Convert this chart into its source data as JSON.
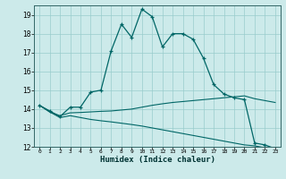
{
  "xlabel": "Humidex (Indice chaleur)",
  "background_color": "#cceaea",
  "grid_color": "#99cccc",
  "line_color": "#006666",
  "xlim": [
    -0.5,
    23.5
  ],
  "ylim": [
    12,
    19.5
  ],
  "yticks": [
    12,
    13,
    14,
    15,
    16,
    17,
    18,
    19
  ],
  "xticks": [
    0,
    1,
    2,
    3,
    4,
    5,
    6,
    7,
    8,
    9,
    10,
    11,
    12,
    13,
    14,
    15,
    16,
    17,
    18,
    19,
    20,
    21,
    22,
    23
  ],
  "line1_x": [
    0,
    1,
    2,
    3,
    4,
    5,
    6,
    7,
    8,
    9,
    10,
    11,
    12,
    13,
    14,
    15,
    16,
    17,
    18,
    19,
    20,
    21,
    22,
    23
  ],
  "line1_y": [
    14.2,
    13.9,
    13.6,
    14.1,
    14.1,
    14.9,
    15.0,
    17.1,
    18.5,
    17.8,
    19.3,
    18.9,
    17.3,
    18.0,
    18.0,
    17.7,
    16.7,
    15.3,
    14.8,
    14.6,
    14.5,
    12.2,
    12.1,
    11.9
  ],
  "line2_x": [
    0,
    1,
    2,
    3,
    4,
    5,
    6,
    7,
    8,
    9,
    10,
    11,
    12,
    13,
    14,
    15,
    16,
    17,
    18,
    19,
    20,
    21,
    22,
    23
  ],
  "line2_y": [
    14.2,
    13.85,
    13.65,
    13.8,
    13.82,
    13.85,
    13.88,
    13.9,
    13.95,
    14.0,
    14.1,
    14.2,
    14.28,
    14.35,
    14.4,
    14.45,
    14.5,
    14.55,
    14.6,
    14.65,
    14.7,
    14.55,
    14.45,
    14.35
  ],
  "line3_x": [
    0,
    1,
    2,
    3,
    4,
    5,
    6,
    7,
    8,
    9,
    10,
    11,
    12,
    13,
    14,
    15,
    16,
    17,
    18,
    19,
    20,
    21,
    22,
    23
  ],
  "line3_y": [
    14.2,
    13.85,
    13.55,
    13.65,
    13.55,
    13.45,
    13.38,
    13.32,
    13.25,
    13.18,
    13.1,
    13.0,
    12.9,
    12.8,
    12.7,
    12.6,
    12.5,
    12.4,
    12.3,
    12.2,
    12.1,
    12.05,
    11.95,
    11.88
  ]
}
